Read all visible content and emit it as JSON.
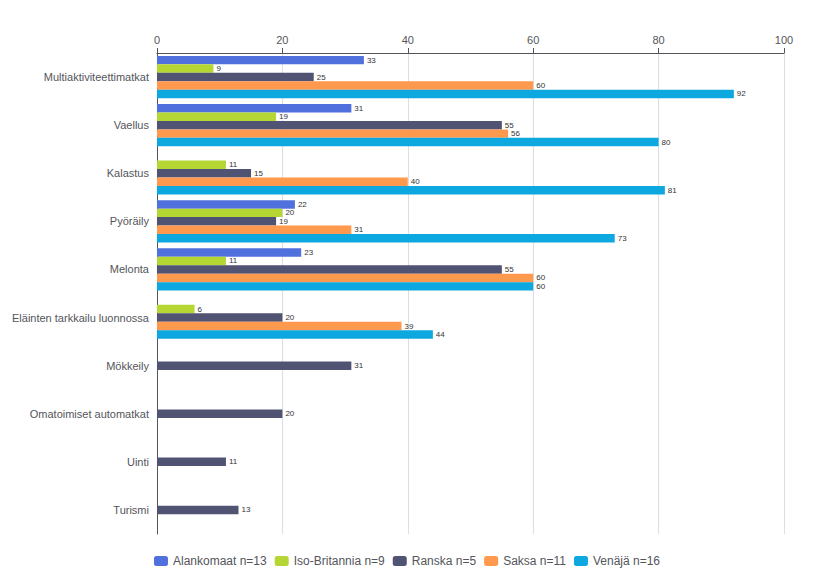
{
  "chart_data": {
    "type": "bar",
    "orientation": "horizontal",
    "categories": [
      "Multiaktiviteettimatkat",
      "Vaellus",
      "Kalastus",
      "Pyöräily",
      "Melonta",
      "Eläinten tarkkailu luonnossa",
      "Mökkeily",
      "Omatoimiset automatkat",
      "Uinti",
      "Turismi"
    ],
    "series": [
      {
        "name": "Alankomaat n=13",
        "values": [
          33,
          31,
          0,
          22,
          23,
          0,
          0,
          0,
          0,
          0
        ]
      },
      {
        "name": "Iso-Britannia n=9",
        "values": [
          9,
          19,
          11,
          20,
          11,
          6,
          0,
          0,
          0,
          0
        ]
      },
      {
        "name": "Ranska n=5",
        "values": [
          25,
          55,
          15,
          19,
          55,
          20,
          31,
          20,
          11,
          13
        ]
      },
      {
        "name": "Saksa n=11",
        "values": [
          60,
          56,
          40,
          31,
          60,
          39,
          0,
          0,
          0,
          0
        ]
      },
      {
        "name": "Venäjä n=16",
        "values": [
          92,
          80,
          81,
          73,
          60,
          44,
          0,
          0,
          0,
          0
        ]
      }
    ],
    "xlim": [
      0,
      100
    ],
    "xticks": [
      0,
      20,
      40,
      60,
      80,
      100
    ],
    "grid": true,
    "data_labels": true,
    "legend": "bottom"
  }
}
